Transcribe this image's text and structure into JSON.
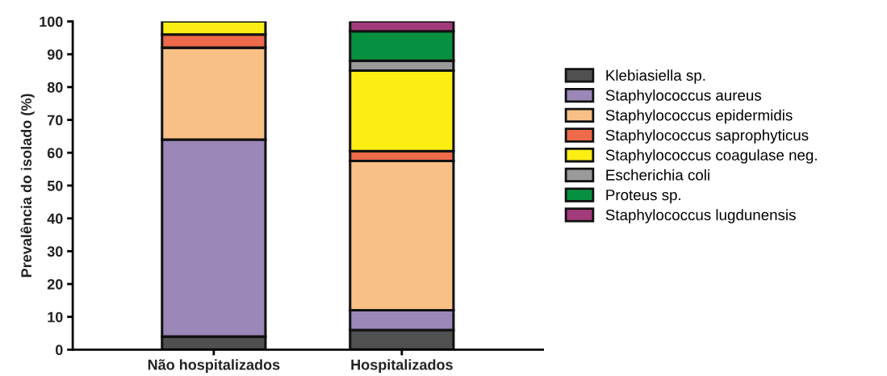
{
  "chart_data": {
    "type": "bar",
    "stacked": true,
    "ylabel": "Prevalência do isolado (%)",
    "categories": [
      "Não hospitalizados",
      "Hospitalizados"
    ],
    "ylim": [
      0,
      100
    ],
    "yticks": [
      0,
      10,
      20,
      30,
      40,
      50,
      60,
      70,
      80,
      90,
      100
    ],
    "grid": false,
    "legend": "right",
    "series": [
      {
        "name": "Klebiasiella sp.",
        "color": "#505050",
        "values": [
          4,
          6
        ]
      },
      {
        "name": "Staphylococcus aureus",
        "color": "#9b87b8",
        "values": [
          60,
          6
        ]
      },
      {
        "name": "Staphylococcus epidermidis",
        "color": "#f9c086",
        "values": [
          28,
          45.5
        ]
      },
      {
        "name": "Staphylococcus saprophyticus",
        "color": "#ee6a4a",
        "values": [
          4,
          3
        ]
      },
      {
        "name": "Staphylococcus coagulase neg.",
        "color": "#fcee12",
        "values": [
          4,
          24.5
        ]
      },
      {
        "name": "Escherichia coli",
        "color": "#9a9a9a",
        "values": [
          0,
          3
        ]
      },
      {
        "name": "Proteus sp.",
        "color": "#05913f",
        "values": [
          0,
          9
        ]
      },
      {
        "name": "Staphylococcus lugdunensis",
        "color": "#a23b7c",
        "values": [
          0,
          3
        ]
      }
    ]
  }
}
